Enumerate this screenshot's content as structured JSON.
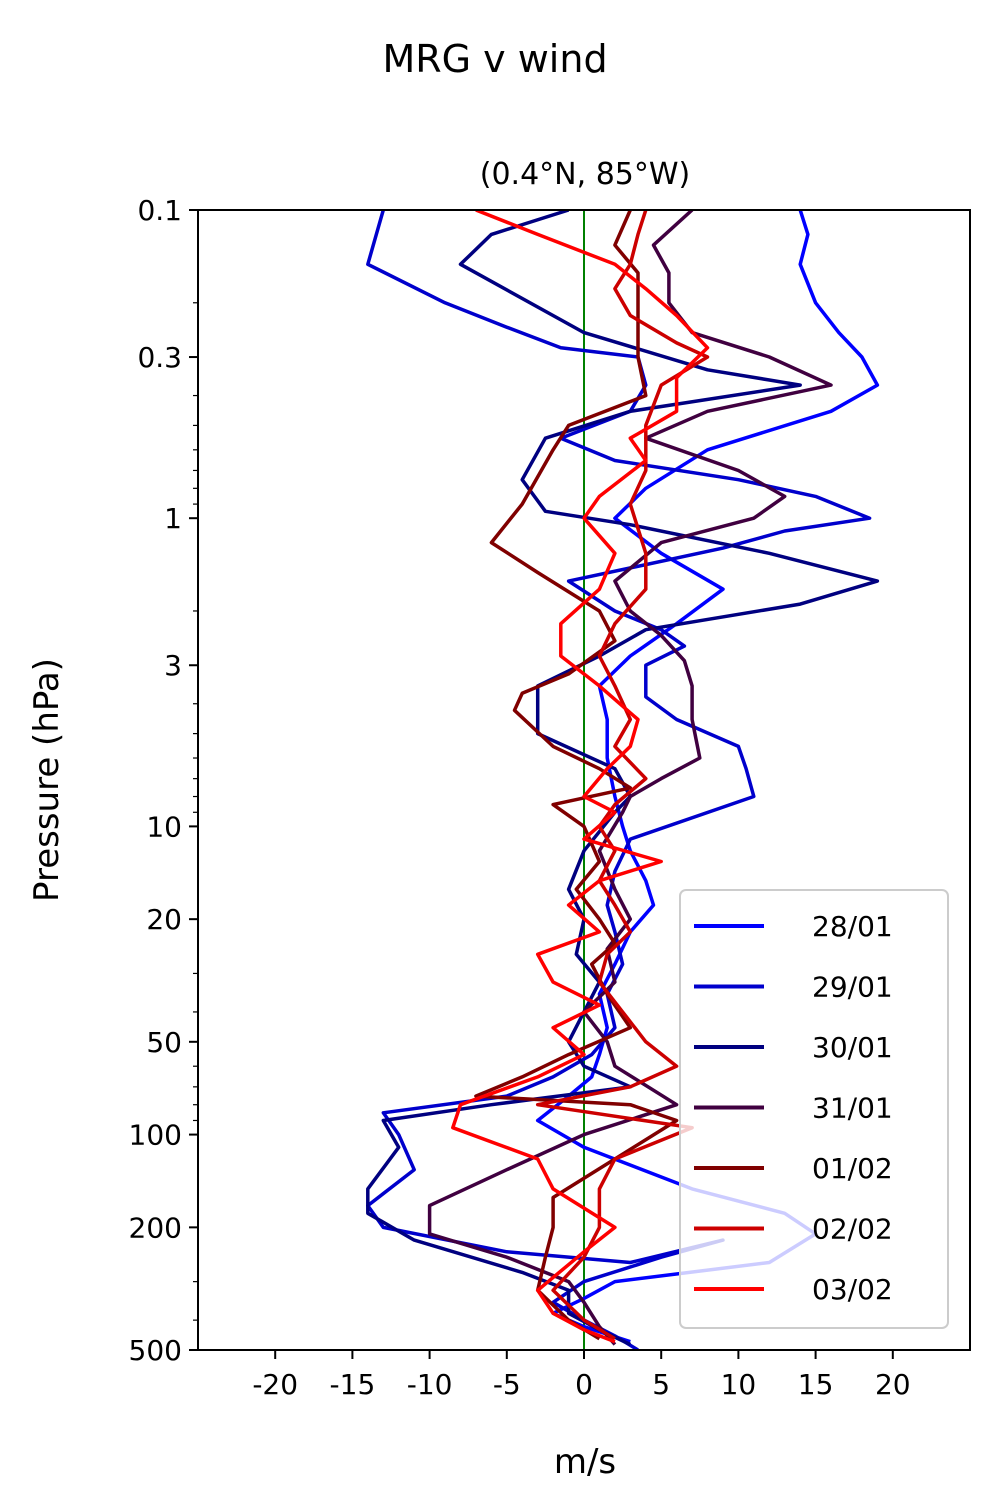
{
  "chart_data": {
    "type": "line",
    "title": "MRG v wind",
    "subtitle": "(0.4°N, 85°W)",
    "xlabel": "m/s",
    "ylabel": "Pressure (hPa)",
    "xlim": [
      -25,
      25
    ],
    "ylim": [
      500,
      0.1
    ],
    "yscale": "log",
    "x_ticks": [
      -20,
      -15,
      -10,
      -5,
      0,
      5,
      10,
      15,
      20
    ],
    "y_ticks": [
      0.1,
      0.3,
      1,
      3,
      10,
      20,
      50,
      100,
      200,
      500
    ],
    "y_tick_labels": [
      "0.1",
      "0.3",
      "1",
      "3",
      "10",
      "20",
      "50",
      "100",
      "200",
      "500"
    ],
    "zero_line_color": "#008000",
    "legend_position": "lower right",
    "series": [
      {
        "name": "28/01",
        "color": "#0000ff",
        "points": [
          [
            14,
            0.1
          ],
          [
            14.5,
            0.12
          ],
          [
            14,
            0.15
          ],
          [
            15,
            0.2
          ],
          [
            16.5,
            0.25
          ],
          [
            18,
            0.3
          ],
          [
            19,
            0.37
          ],
          [
            16,
            0.45
          ],
          [
            8,
            0.6
          ],
          [
            4,
            0.8
          ],
          [
            2,
            1.0
          ],
          [
            5,
            1.3
          ],
          [
            9,
            1.7
          ],
          [
            6,
            2.2
          ],
          [
            3,
            2.8
          ],
          [
            1,
            3.5
          ],
          [
            1.5,
            4.5
          ],
          [
            1.5,
            6
          ],
          [
            2,
            8
          ],
          [
            2.5,
            10
          ],
          [
            3,
            12
          ],
          [
            4,
            15
          ],
          [
            4.5,
            18
          ],
          [
            3,
            22
          ],
          [
            2,
            28
          ],
          [
            1,
            35
          ],
          [
            1.5,
            45
          ],
          [
            1,
            55
          ],
          [
            0.5,
            65
          ],
          [
            -1,
            75
          ],
          [
            -3,
            90
          ],
          [
            0,
            110
          ],
          [
            7,
            150
          ],
          [
            13,
            180
          ],
          [
            15,
            210
          ],
          [
            12,
            260
          ],
          [
            2,
            300
          ],
          [
            0,
            340
          ],
          [
            -2,
            380
          ],
          [
            0,
            420
          ],
          [
            3,
            470
          ]
        ]
      },
      {
        "name": "29/01",
        "color": "#0000cc",
        "points": [
          [
            -13,
            0.1
          ],
          [
            -14,
            0.15
          ],
          [
            -9,
            0.2
          ],
          [
            -5,
            0.24
          ],
          [
            -1.5,
            0.28
          ],
          [
            3.5,
            0.3
          ],
          [
            4,
            0.37
          ],
          [
            3,
            0.45
          ],
          [
            -1.5,
            0.55
          ],
          [
            2,
            0.65
          ],
          [
            10,
            0.75
          ],
          [
            15,
            0.85
          ],
          [
            18.5,
            1.0
          ],
          [
            13,
            1.1
          ],
          [
            9,
            1.25
          ],
          [
            -1,
            1.6
          ],
          [
            2,
            2.0
          ],
          [
            5,
            2.3
          ],
          [
            6.5,
            2.6
          ],
          [
            4,
            3.0
          ],
          [
            4,
            3.8
          ],
          [
            6,
            4.5
          ],
          [
            10,
            5.5
          ],
          [
            10.5,
            6.5
          ],
          [
            11,
            8
          ],
          [
            3,
            11
          ],
          [
            2,
            14
          ],
          [
            1.5,
            18
          ],
          [
            2,
            22
          ],
          [
            2.5,
            28
          ],
          [
            1.5,
            35
          ],
          [
            2,
            45
          ],
          [
            0.5,
            55
          ],
          [
            -2,
            65
          ],
          [
            -5,
            75
          ],
          [
            -13,
            85
          ],
          [
            -12,
            100
          ],
          [
            -11,
            130
          ],
          [
            -14,
            170
          ],
          [
            -13,
            200
          ],
          [
            -5,
            240
          ],
          [
            3,
            260
          ],
          [
            9,
            220
          ],
          [
            5,
            250
          ],
          [
            0,
            300
          ],
          [
            -2,
            350
          ],
          [
            0,
            400
          ],
          [
            2,
            450
          ],
          [
            3.5,
            500
          ]
        ]
      },
      {
        "name": "30/01",
        "color": "#000080",
        "points": [
          [
            -1,
            0.1
          ],
          [
            -6,
            0.12
          ],
          [
            -8,
            0.15
          ],
          [
            0,
            0.25
          ],
          [
            8,
            0.33
          ],
          [
            14,
            0.37
          ],
          [
            3,
            0.45
          ],
          [
            -2.5,
            0.55
          ],
          [
            -4,
            0.75
          ],
          [
            -2.5,
            0.95
          ],
          [
            3,
            1.05
          ],
          [
            12,
            1.3
          ],
          [
            19,
            1.6
          ],
          [
            14,
            1.9
          ],
          [
            4,
            2.3
          ],
          [
            1,
            2.8
          ],
          [
            -3,
            3.5
          ],
          [
            -3,
            5
          ],
          [
            2,
            6.5
          ],
          [
            3,
            8
          ],
          [
            2,
            9
          ],
          [
            0,
            12
          ],
          [
            -1,
            16
          ],
          [
            0,
            20
          ],
          [
            -0.5,
            26
          ],
          [
            1,
            32
          ],
          [
            0,
            40
          ],
          [
            -1,
            50
          ],
          [
            0,
            60
          ],
          [
            3,
            70
          ],
          [
            -6,
            80
          ],
          [
            -13,
            90
          ],
          [
            -12,
            110
          ],
          [
            -14,
            150
          ],
          [
            -14,
            180
          ],
          [
            -11,
            220
          ],
          [
            -4,
            280
          ],
          [
            -1,
            320
          ],
          [
            -1,
            380
          ],
          [
            1,
            430
          ],
          [
            3,
            480
          ]
        ]
      },
      {
        "name": "31/01",
        "color": "#400040",
        "points": [
          [
            7,
            0.1
          ],
          [
            4.5,
            0.13
          ],
          [
            5.5,
            0.16
          ],
          [
            5.5,
            0.2
          ],
          [
            7,
            0.25
          ],
          [
            12,
            0.3
          ],
          [
            16,
            0.37
          ],
          [
            8,
            0.45
          ],
          [
            4,
            0.55
          ],
          [
            10,
            0.7
          ],
          [
            13,
            0.85
          ],
          [
            11,
            1.0
          ],
          [
            5,
            1.2
          ],
          [
            2,
            1.6
          ],
          [
            3,
            2.0
          ],
          [
            5,
            2.4
          ],
          [
            6.5,
            2.9
          ],
          [
            7,
            3.5
          ],
          [
            7,
            4.5
          ],
          [
            7.5,
            6
          ],
          [
            5,
            7
          ],
          [
            3,
            8
          ],
          [
            2.5,
            9
          ],
          [
            1,
            12
          ],
          [
            2,
            16
          ],
          [
            3,
            20
          ],
          [
            1.5,
            25
          ],
          [
            2,
            32
          ],
          [
            0,
            40
          ],
          [
            1.5,
            50
          ],
          [
            2,
            60
          ],
          [
            6,
            80
          ],
          [
            0,
            100
          ],
          [
            -5,
            130
          ],
          [
            -10,
            170
          ],
          [
            -10,
            210
          ],
          [
            -5,
            250
          ],
          [
            -1,
            300
          ],
          [
            0,
            350
          ],
          [
            1,
            420
          ],
          [
            2,
            480
          ]
        ]
      },
      {
        "name": "01/02",
        "color": "#800000",
        "points": [
          [
            3,
            0.1
          ],
          [
            2,
            0.13
          ],
          [
            3.5,
            0.16
          ],
          [
            3.5,
            0.2
          ],
          [
            3.5,
            0.3
          ],
          [
            4,
            0.4
          ],
          [
            -1,
            0.5
          ],
          [
            -2,
            0.6
          ],
          [
            -4,
            0.9
          ],
          [
            -6,
            1.2
          ],
          [
            -3,
            1.5
          ],
          [
            1,
            2.0
          ],
          [
            2,
            2.5
          ],
          [
            -1,
            3.2
          ],
          [
            -4,
            3.7
          ],
          [
            -4.5,
            4.2
          ],
          [
            -2,
            5.5
          ],
          [
            1,
            6.5
          ],
          [
            3,
            7.5
          ],
          [
            -2,
            8.5
          ],
          [
            0,
            10
          ],
          [
            1,
            13
          ],
          [
            -0.5,
            16
          ],
          [
            1,
            20
          ],
          [
            2,
            24
          ],
          [
            0.5,
            28
          ],
          [
            1.5,
            35
          ],
          [
            3,
            45
          ],
          [
            -1,
            55
          ],
          [
            -4,
            65
          ],
          [
            -7,
            75
          ],
          [
            3,
            80
          ],
          [
            6,
            90
          ],
          [
            2,
            120
          ],
          [
            -2,
            160
          ],
          [
            -2,
            200
          ],
          [
            -2.5,
            250
          ],
          [
            -3,
            320
          ],
          [
            -1,
            400
          ],
          [
            1,
            460
          ]
        ]
      },
      {
        "name": "02/02",
        "color": "#cc0000",
        "points": [
          [
            4,
            0.1
          ],
          [
            3.5,
            0.12
          ],
          [
            3,
            0.15
          ],
          [
            2,
            0.18
          ],
          [
            3,
            0.22
          ],
          [
            6,
            0.27
          ],
          [
            8,
            0.3
          ],
          [
            5,
            0.37
          ],
          [
            4,
            0.5
          ],
          [
            4,
            0.7
          ],
          [
            3,
            0.9
          ],
          [
            4,
            1.3
          ],
          [
            4,
            1.7
          ],
          [
            2,
            2.2
          ],
          [
            1,
            2.8
          ],
          [
            2,
            3.5
          ],
          [
            3,
            4.5
          ],
          [
            2,
            5.5
          ],
          [
            4,
            7
          ],
          [
            2,
            8.5
          ],
          [
            1,
            10
          ],
          [
            2,
            12
          ],
          [
            1,
            15
          ],
          [
            2,
            18
          ],
          [
            3,
            22
          ],
          [
            1.5,
            26
          ],
          [
            1,
            32
          ],
          [
            2.5,
            40
          ],
          [
            4,
            50
          ],
          [
            6,
            60
          ],
          [
            3,
            70
          ],
          [
            -3,
            80
          ],
          [
            7,
            95
          ],
          [
            2,
            120
          ],
          [
            1,
            150
          ],
          [
            1,
            200
          ],
          [
            0,
            250
          ],
          [
            -2,
            320
          ],
          [
            0,
            400
          ],
          [
            2,
            460
          ]
        ]
      },
      {
        "name": "03/02",
        "color": "#ff0000",
        "points": [
          [
            -7,
            0.1
          ],
          [
            -3,
            0.12
          ],
          [
            2,
            0.15
          ],
          [
            4,
            0.18
          ],
          [
            6,
            0.22
          ],
          [
            8,
            0.28
          ],
          [
            6,
            0.35
          ],
          [
            6,
            0.45
          ],
          [
            3,
            0.55
          ],
          [
            4,
            0.65
          ],
          [
            1,
            0.85
          ],
          [
            0,
            1.0
          ],
          [
            2,
            1.3
          ],
          [
            1,
            1.7
          ],
          [
            -1.5,
            2.2
          ],
          [
            -1.5,
            2.8
          ],
          [
            1,
            3.5
          ],
          [
            3.5,
            4.5
          ],
          [
            3,
            5.5
          ],
          [
            1.5,
            6.5
          ],
          [
            0,
            8
          ],
          [
            2,
            9
          ],
          [
            0,
            11
          ],
          [
            5,
            13
          ],
          [
            1,
            15
          ],
          [
            -1,
            18
          ],
          [
            1,
            22
          ],
          [
            -3,
            26
          ],
          [
            -2,
            32
          ],
          [
            1,
            38
          ],
          [
            -2,
            45
          ],
          [
            0,
            55
          ],
          [
            -3,
            65
          ],
          [
            -8,
            80
          ],
          [
            -8.5,
            95
          ],
          [
            -3,
            120
          ],
          [
            -2,
            150
          ],
          [
            2,
            200
          ],
          [
            0,
            240
          ],
          [
            -3,
            320
          ],
          [
            -2,
            380
          ],
          [
            0,
            430
          ],
          [
            2,
            470
          ]
        ]
      }
    ]
  }
}
